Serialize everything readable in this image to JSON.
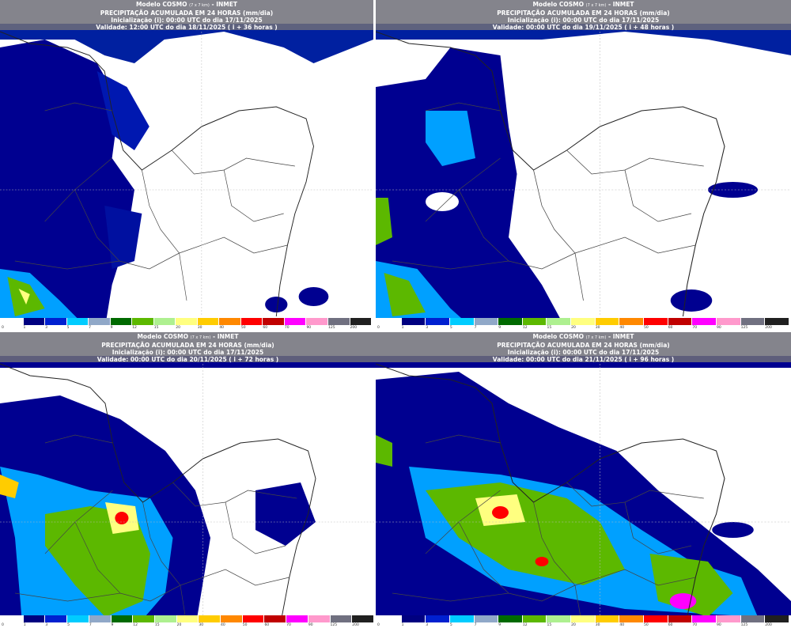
{
  "colorbar": {
    "unit": "mm/dia",
    "labels": [
      "0",
      "1",
      "3",
      "5",
      "7",
      "9",
      "12",
      "15",
      "20",
      "30",
      "40",
      "50",
      "60",
      "70",
      "90",
      "125",
      "200"
    ],
    "colors": [
      "#ffffff",
      "#000080",
      "#0020d0",
      "#00ccff",
      "#90a8c8",
      "#006a00",
      "#5cb800",
      "#aef090",
      "#ffff80",
      "#ffcc00",
      "#ff8800",
      "#ff0000",
      "#c00000",
      "#ff00ff",
      "#ff99cc",
      "#707080",
      "#202020"
    ]
  },
  "panels": [
    {
      "model": "Modelo COSMO",
      "res": "(7 x 7 km)",
      "org": "- INMET",
      "title": "PRECIPITAÇÃO ACUMULADA EM 24 HORAS (mm/dia)",
      "init": "Inicialização (i): 00:00 UTC do dia 17/11/2025",
      "valid": "Validade: 12:00 UTC do dia 18/11/2025 ( i + 36 horas )"
    },
    {
      "model": "Modelo COSMO",
      "res": "(7 x 7 km)",
      "org": "- INMET",
      "title": "PRECIPITAÇÃO ACUMULADA EM 24 HORAS (mm/dia)",
      "init": "Inicialização (i): 00:00 UTC do dia 17/11/2025",
      "valid": "Validade: 00:00 UTC do dia 19/11/2025 ( i + 48 horas )"
    },
    {
      "model": "Modelo COSMO",
      "res": "(7 x 7 km)",
      "org": "- INMET",
      "title": "PRECIPITAÇÃO ACUMULADA EM 24 HORAS (mm/dia)",
      "init": "Inicialização (i): 00:00 UTC do dia 17/11/2025",
      "valid": "Validade: 00:00 UTC do dia 20/11/2025 ( i + 72 horas )"
    },
    {
      "model": "Modelo COSMO",
      "res": "(7 x 7 km)",
      "org": "- INMET",
      "title": "PRECIPITAÇÃO ACUMULADA EM 24 HORAS (mm/dia)",
      "init": "Inicialização (i): 00:00 UTC do dia 17/11/2025",
      "valid": "Validade: 00:00 UTC do dia 21/11/2025 ( i + 96 horas )"
    }
  ]
}
